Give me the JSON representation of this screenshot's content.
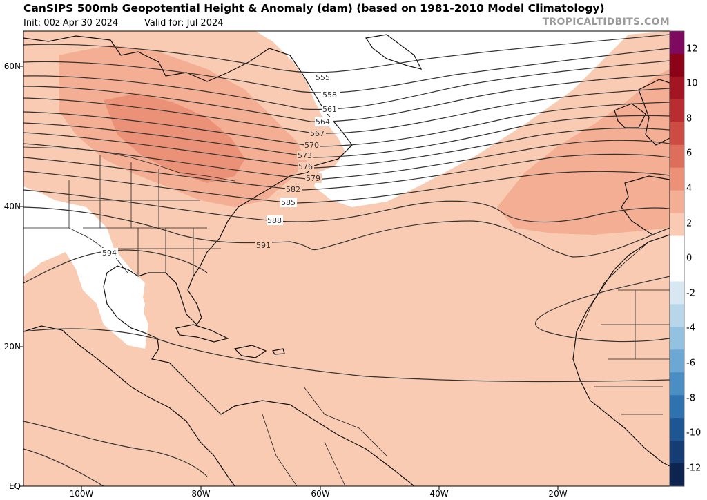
{
  "header": {
    "title": "CanSIPS 500mb Geopotential Height & Anomaly (dam) (based on 1981-2010 Model Climatology)",
    "init": "Init: 00z Apr 30 2024",
    "valid": "Valid for: Jul 2024",
    "brand": "TROPICALTIDBITS.COM"
  },
  "lat_labels": [
    "60N",
    "40N",
    "20N",
    "EQ"
  ],
  "lon_labels": [
    "100W",
    "80W",
    "60W",
    "40W",
    "20W"
  ],
  "contour_labels": [
    "555",
    "558",
    "561",
    "564",
    "567",
    "570",
    "573",
    "576",
    "579",
    "582",
    "585",
    "588",
    "591",
    "594"
  ],
  "colorbar": {
    "labels": [
      "12",
      "10",
      "8",
      "6",
      "4",
      "2",
      "0",
      "-2",
      "-4",
      "-6",
      "-8",
      "-10",
      "-12"
    ],
    "colors": [
      "#7e0a60",
      "#8c0318",
      "#a31521",
      "#b92d30",
      "#cc4c44",
      "#de6e5c",
      "#eb9177",
      "#f3ae94",
      "#f9cbb3",
      "#ffffff",
      "#ffffff",
      "#d7e8f3",
      "#b7d6ea",
      "#93c1e0",
      "#6ca8d3",
      "#4a8ec3",
      "#2f72b0",
      "#1e5694",
      "#153c73",
      "#0e2450"
    ]
  },
  "colors": {
    "anomaly_1": "#f9cbb3",
    "anomaly_2": "#f3ae94",
    "anomaly_3": "#eb9177",
    "contour": "#333333",
    "brand_text": "#9a9a9a"
  }
}
